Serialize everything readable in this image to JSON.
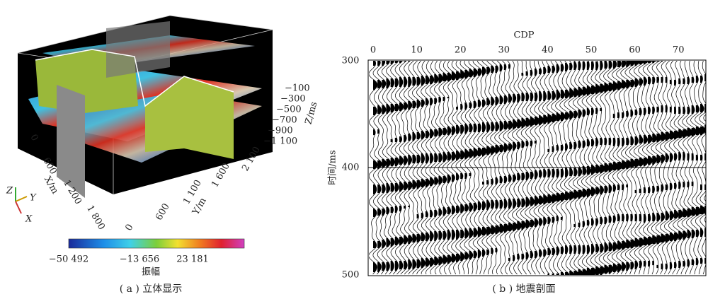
{
  "panel_a": {
    "caption": "( a ) 立体显示",
    "z_axis_label": "Z/ms",
    "z_ticks": [
      "−100",
      "−300",
      "−500",
      "−700",
      "−900",
      "−1 100"
    ],
    "x_axis_label": "X/m",
    "x_ticks": [
      "0",
      "600",
      "1 200",
      "1 800"
    ],
    "y_axis_label": "Y/m",
    "y_ticks": [
      "0",
      "600",
      "1 100",
      "1 600",
      "2 100"
    ],
    "colorbar_label": "振幅",
    "colorbar_ticks": [
      "−50 492",
      "−13 656",
      "23 181"
    ],
    "orientation": [
      "Z",
      "Y",
      "X"
    ]
  },
  "panel_b": {
    "caption": "( b ) 地震剖面",
    "x_axis_label": "CDP",
    "x_ticks": [
      "0",
      "10",
      "20",
      "30",
      "40",
      "50",
      "60",
      "70"
    ],
    "y_axis_label": "时间/ms",
    "y_ticks": [
      "300",
      "400",
      "500"
    ]
  }
}
